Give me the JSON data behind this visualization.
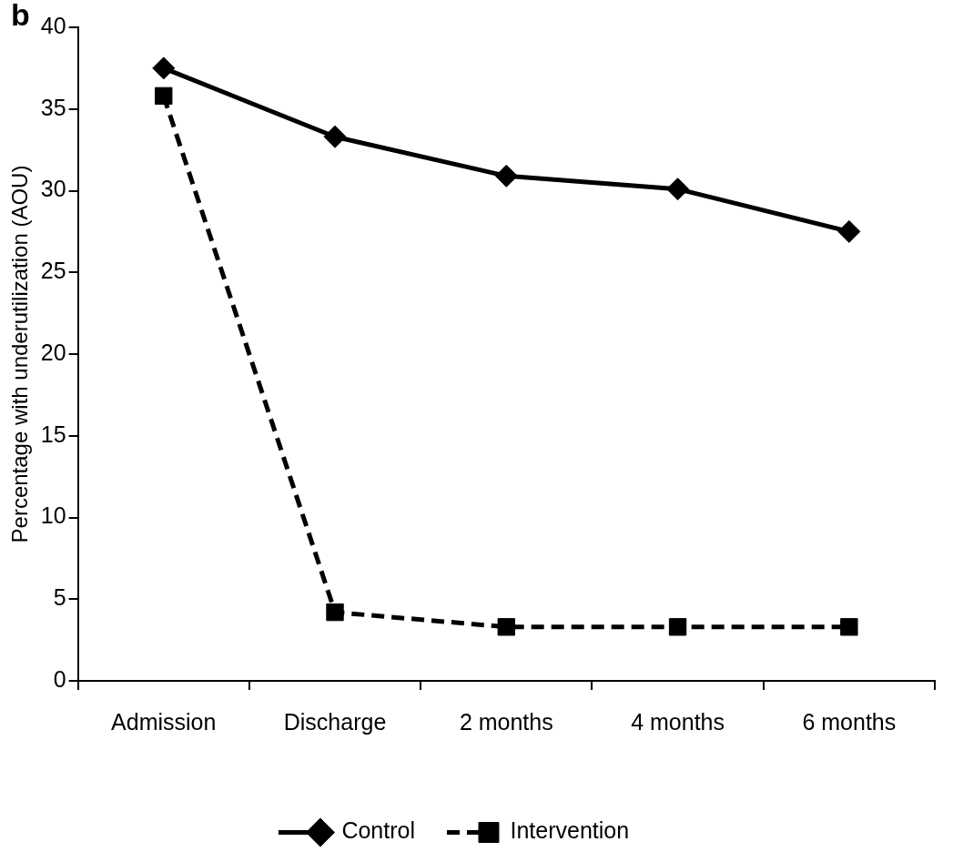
{
  "chart_data": {
    "type": "line",
    "title": "b",
    "ylabel": "Percentage with underutilization (AOU)",
    "categories": [
      "Admission",
      "Discharge",
      "2 months",
      "4 months",
      "6 months"
    ],
    "series": [
      {
        "name": "Control",
        "color": "#000000",
        "values": [
          37.5,
          33.3,
          30.9,
          30.1,
          27.5
        ],
        "marker": "diamond",
        "line_style": "solid"
      },
      {
        "name": "Intervention",
        "color": "#000000",
        "values": [
          35.8,
          4.2,
          3.3,
          3.3,
          3.3
        ],
        "marker": "square",
        "line_style": "dashed"
      }
    ],
    "ylim": [
      0,
      40
    ],
    "yticks": [
      0,
      5,
      10,
      15,
      20,
      25,
      30,
      35,
      40
    ],
    "grid": false,
    "legend": "bottom"
  }
}
